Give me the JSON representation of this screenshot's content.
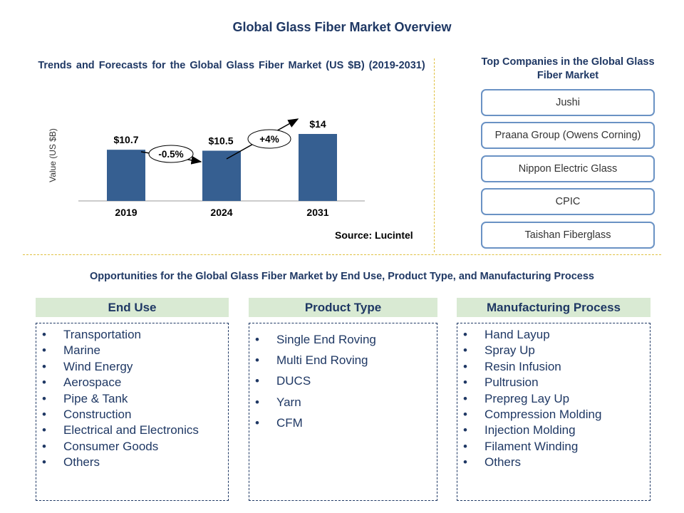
{
  "page_title": "Global Glass Fiber Market Overview",
  "chart_data": {
    "type": "bar",
    "title": "Trends and Forecasts for the Global Glass Fiber Market (US $B) (2019-2031)",
    "ylabel": "Value (US $B)",
    "categories": [
      "2019",
      "2024",
      "2031"
    ],
    "values": [
      10.7,
      10.5,
      14
    ],
    "data_labels": [
      "$10.7",
      "$10.5",
      "$14"
    ],
    "annotations": [
      "-0.5%",
      "+4%"
    ],
    "bar_color": "#365f91",
    "source": "Source: Lucintel"
  },
  "companies": {
    "title": "Top  Companies in the Global Glass Fiber Market",
    "items": [
      "Jushi",
      "Praana Group (Owens Corning)",
      "Nippon Electric Glass",
      "CPIC",
      "Taishan Fiberglass"
    ]
  },
  "opportunities": {
    "title": "Opportunities for the Global Glass Fiber Market by End Use, Product Type, and Manufacturing Process",
    "categories": [
      {
        "heading": "End Use",
        "items": [
          "Transportation",
          "Marine",
          "Wind Energy",
          "Aerospace",
          "Pipe & Tank",
          "Construction",
          "Electrical and Electronics",
          "Consumer Goods",
          "Others"
        ]
      },
      {
        "heading": "Product Type",
        "items": [
          "Single End Roving",
          "Multi End Roving",
          "DUCS",
          "Yarn",
          "CFM"
        ]
      },
      {
        "heading": "Manufacturing Process",
        "items": [
          "Hand Layup",
          "Spray Up",
          "Resin Infusion",
          "Pultrusion",
          "Prepreg Lay Up",
          "Compression Molding",
          "Injection Molding",
          "Filament Winding",
          "Others"
        ]
      }
    ]
  }
}
